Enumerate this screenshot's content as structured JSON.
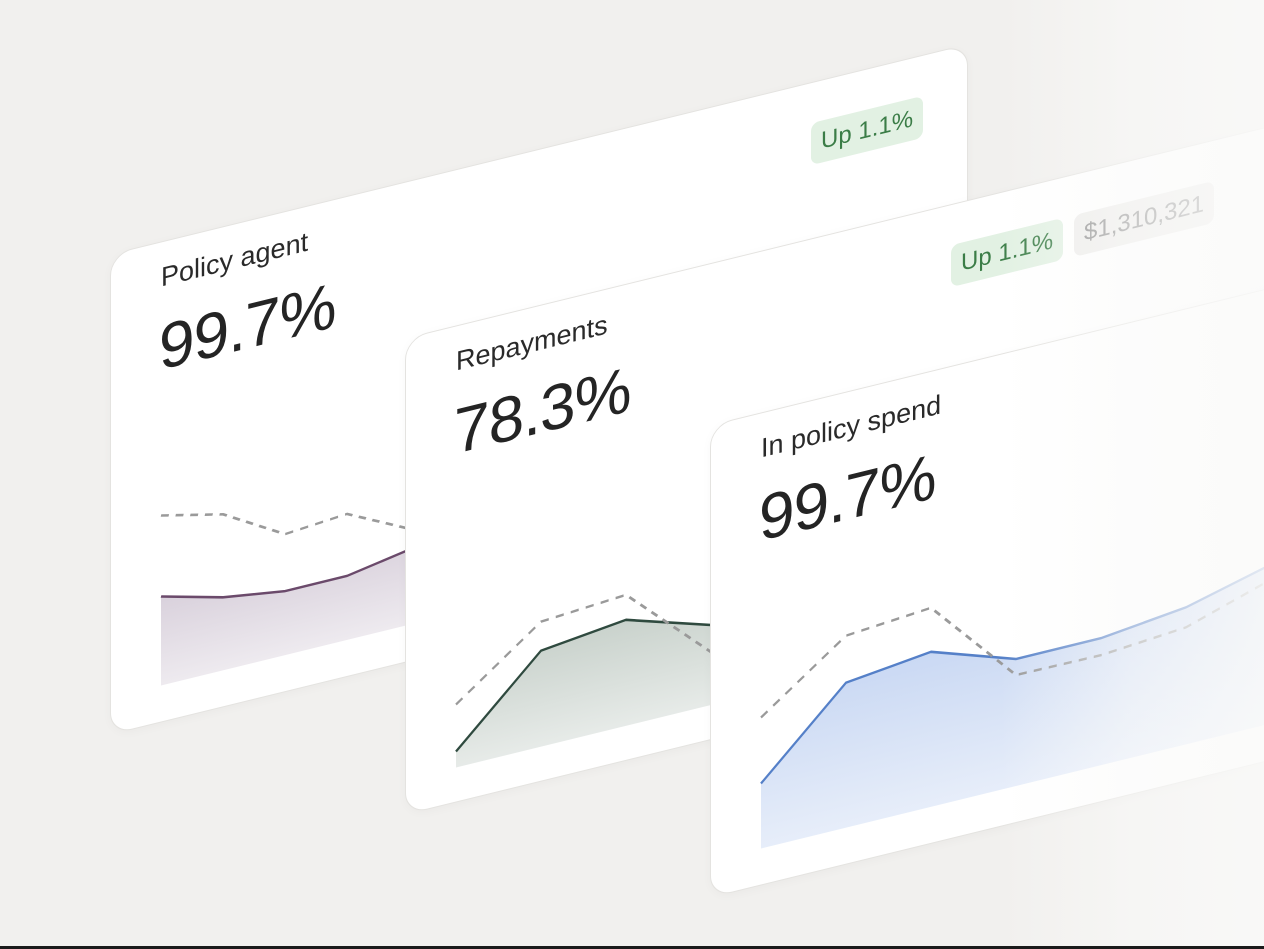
{
  "cards": [
    {
      "title": "Policy agent",
      "metric": "99.7%",
      "badges": [
        {
          "label": "Up 1.1%",
          "kind": "up"
        }
      ],
      "line_color": "#6b4a6b",
      "fill_color": "#d9d1dc"
    },
    {
      "title": "Repayments",
      "metric": "78.3%",
      "badges": [
        {
          "label": "Up 1.1%",
          "kind": "up"
        },
        {
          "label": "$1,310,321",
          "kind": "gray"
        }
      ],
      "line_color": "#2f4a3f",
      "fill_color": "#c9d2cc"
    },
    {
      "title": "In policy spend",
      "metric": "99.7%",
      "badges": [],
      "line_color": "#5580c8",
      "fill_color": "#c9d8f3"
    }
  ],
  "colors": {
    "background": "#f1f0ee",
    "card": "#ffffff",
    "badge_up_bg": "#e2f1e3",
    "badge_up_text": "#3b7d47",
    "badge_gray_bg": "#eeedeb",
    "badge_gray_text": "#8a8a8a",
    "dashed_line": "#9a9a9a"
  },
  "chart_data": [
    {
      "type": "area",
      "card": "Policy agent",
      "series": [
        {
          "style": "solid-area",
          "values": [
            89,
            73,
            64,
            64,
            75
          ]
        },
        {
          "style": "dashed",
          "values": [
            170,
            156,
            121,
            126,
            96
          ]
        }
      ]
    },
    {
      "type": "area",
      "card": "Repayments",
      "series": [
        {
          "style": "solid-area",
          "values": [
            16,
            96,
            106,
            80
          ]
        },
        {
          "style": "dashed",
          "values": [
            63,
            125,
            131,
            53
          ]
        }
      ]
    },
    {
      "type": "area",
      "card": "In policy spend",
      "series": [
        {
          "style": "solid-area",
          "values": [
            65,
            145,
            155,
            127,
            127,
            137,
            159
          ]
        },
        {
          "style": "dashed",
          "values": [
            131,
            192,
            199,
            111,
            110,
            117,
            144
          ]
        }
      ]
    }
  ]
}
